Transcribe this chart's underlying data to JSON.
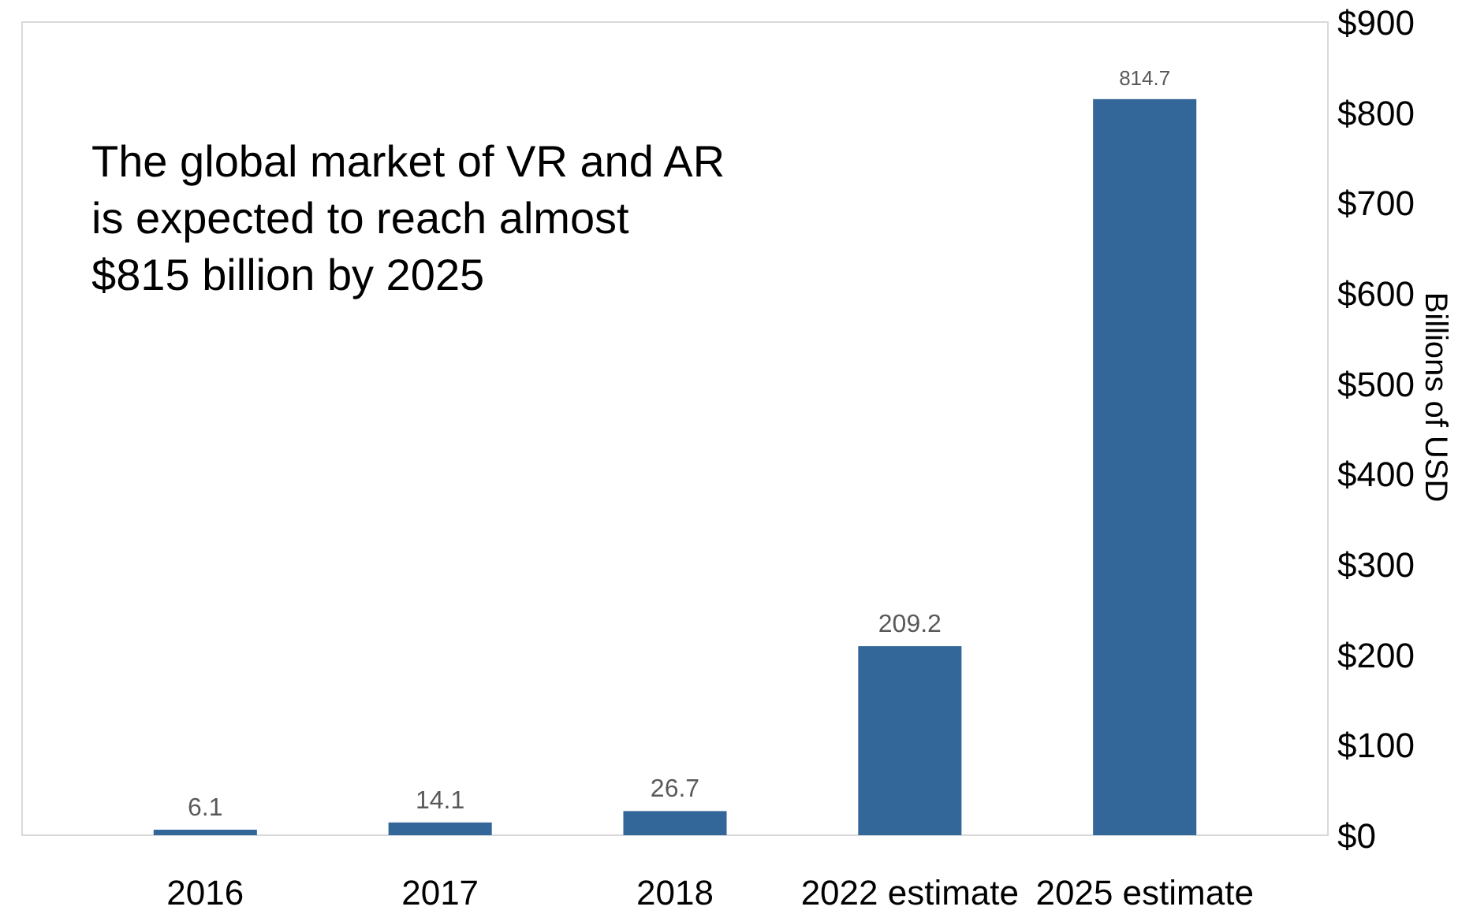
{
  "chart_data": {
    "type": "bar",
    "categories": [
      "2016",
      "2017",
      "2018",
      "2022 estimate",
      "2025 estimate"
    ],
    "values": [
      6.1,
      14.1,
      26.7,
      209.2,
      814.7
    ],
    "color": "#336699",
    "data_labels": true,
    "ylim": [
      0,
      900
    ],
    "yticks": [
      {
        "value": 0,
        "label": "$0"
      },
      {
        "value": 100,
        "label": "$100"
      },
      {
        "value": 200,
        "label": "$200"
      },
      {
        "value": 300,
        "label": "$300"
      },
      {
        "value": 400,
        "label": "$400"
      },
      {
        "value": 500,
        "label": "$500"
      },
      {
        "value": 600,
        "label": "$600"
      },
      {
        "value": 700,
        "label": "$700"
      },
      {
        "value": 800,
        "label": "$800"
      },
      {
        "value": 900,
        "label": "$900"
      }
    ],
    "ylabel": "Billions of USD",
    "annotations": [
      "The global market of VR and AR is expected to reach almost $815 billion by 2025"
    ],
    "grid": false
  }
}
